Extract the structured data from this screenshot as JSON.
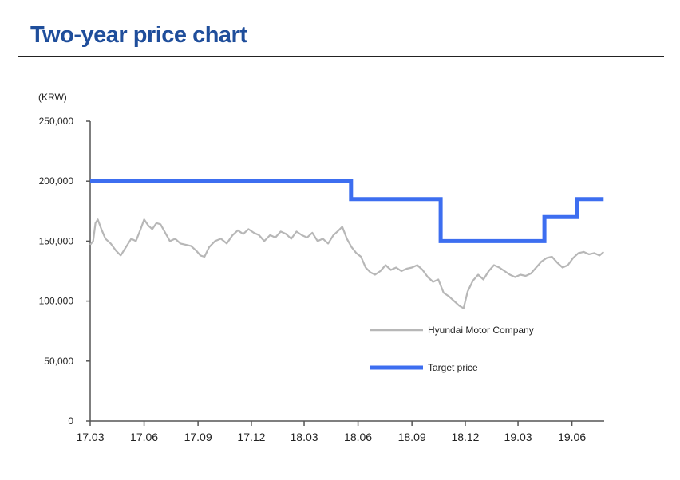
{
  "page": {
    "title": "Two-year price chart"
  },
  "colors": {
    "title": "#1f4e9b",
    "price_line": "#b7b7b7",
    "target_line": "#3d6ef0",
    "axis": "#555555"
  },
  "chart_data": {
    "type": "line",
    "title": "",
    "ylabel": "(KRW)",
    "xlabel": "",
    "ylim": [
      0,
      250000
    ],
    "y_ticks": [
      {
        "value": 0,
        "label": "0"
      },
      {
        "value": 50000,
        "label": "50,000"
      },
      {
        "value": 100000,
        "label": "100,000"
      },
      {
        "value": 150000,
        "label": "150,000"
      },
      {
        "value": 200000,
        "label": "200,000"
      },
      {
        "value": 250000,
        "label": "250,000"
      }
    ],
    "xlim": [
      "2017-03-01",
      "2019-07-26"
    ],
    "x_ticks": [
      {
        "date": "2017-03-01",
        "label": "17.03"
      },
      {
        "date": "2017-06-01",
        "label": "17.06"
      },
      {
        "date": "2017-09-01",
        "label": "17.09"
      },
      {
        "date": "2017-12-01",
        "label": "17.12"
      },
      {
        "date": "2018-03-01",
        "label": "18.03"
      },
      {
        "date": "2018-06-01",
        "label": "18.06"
      },
      {
        "date": "2018-09-01",
        "label": "18.09"
      },
      {
        "date": "2018-12-01",
        "label": "18.12"
      },
      {
        "date": "2019-03-01",
        "label": "19.03"
      },
      {
        "date": "2019-06-01",
        "label": "19.06"
      }
    ],
    "legend_position": "bottom-right",
    "series": [
      {
        "name": "Hyundai Motor Company",
        "color": "#b7b7b7",
        "points": [
          [
            "2017-03-01",
            147000
          ],
          [
            "2017-03-06",
            150000
          ],
          [
            "2017-03-10",
            165000
          ],
          [
            "2017-03-14",
            168000
          ],
          [
            "2017-03-20",
            160000
          ],
          [
            "2017-03-27",
            152000
          ],
          [
            "2017-04-05",
            148000
          ],
          [
            "2017-04-14",
            142000
          ],
          [
            "2017-04-22",
            138000
          ],
          [
            "2017-05-01",
            145000
          ],
          [
            "2017-05-10",
            152000
          ],
          [
            "2017-05-18",
            150000
          ],
          [
            "2017-05-26",
            160000
          ],
          [
            "2017-06-01",
            168000
          ],
          [
            "2017-06-08",
            163000
          ],
          [
            "2017-06-15",
            160000
          ],
          [
            "2017-06-22",
            165000
          ],
          [
            "2017-06-29",
            164000
          ],
          [
            "2017-07-07",
            157000
          ],
          [
            "2017-07-15",
            150000
          ],
          [
            "2017-07-24",
            152000
          ],
          [
            "2017-08-02",
            148000
          ],
          [
            "2017-08-11",
            147000
          ],
          [
            "2017-08-20",
            146000
          ],
          [
            "2017-08-29",
            142000
          ],
          [
            "2017-09-05",
            138000
          ],
          [
            "2017-09-12",
            137000
          ],
          [
            "2017-09-20",
            145000
          ],
          [
            "2017-09-30",
            150000
          ],
          [
            "2017-10-10",
            152000
          ],
          [
            "2017-10-20",
            148000
          ],
          [
            "2017-10-30",
            155000
          ],
          [
            "2017-11-08",
            159000
          ],
          [
            "2017-11-17",
            156000
          ],
          [
            "2017-11-26",
            160000
          ],
          [
            "2017-12-05",
            157000
          ],
          [
            "2017-12-14",
            155000
          ],
          [
            "2017-12-23",
            150000
          ],
          [
            "2018-01-02",
            155000
          ],
          [
            "2018-01-11",
            153000
          ],
          [
            "2018-01-20",
            158000
          ],
          [
            "2018-01-29",
            156000
          ],
          [
            "2018-02-07",
            152000
          ],
          [
            "2018-02-16",
            158000
          ],
          [
            "2018-02-25",
            155000
          ],
          [
            "2018-03-06",
            153000
          ],
          [
            "2018-03-15",
            157000
          ],
          [
            "2018-03-24",
            150000
          ],
          [
            "2018-04-02",
            152000
          ],
          [
            "2018-04-11",
            148000
          ],
          [
            "2018-04-20",
            155000
          ],
          [
            "2018-04-29",
            159000
          ],
          [
            "2018-05-05",
            162000
          ],
          [
            "2018-05-13",
            152000
          ],
          [
            "2018-05-21",
            145000
          ],
          [
            "2018-05-29",
            140000
          ],
          [
            "2018-06-06",
            137000
          ],
          [
            "2018-06-14",
            128000
          ],
          [
            "2018-06-22",
            124000
          ],
          [
            "2018-06-30",
            122000
          ],
          [
            "2018-07-09",
            125000
          ],
          [
            "2018-07-18",
            130000
          ],
          [
            "2018-07-27",
            126000
          ],
          [
            "2018-08-05",
            128000
          ],
          [
            "2018-08-14",
            125000
          ],
          [
            "2018-08-23",
            127000
          ],
          [
            "2018-09-01",
            128000
          ],
          [
            "2018-09-10",
            130000
          ],
          [
            "2018-09-19",
            126000
          ],
          [
            "2018-09-28",
            120000
          ],
          [
            "2018-10-07",
            116000
          ],
          [
            "2018-10-16",
            118000
          ],
          [
            "2018-10-25",
            107000
          ],
          [
            "2018-11-03",
            104000
          ],
          [
            "2018-11-12",
            100000
          ],
          [
            "2018-11-21",
            96000
          ],
          [
            "2018-11-28",
            94000
          ],
          [
            "2018-12-05",
            108000
          ],
          [
            "2018-12-14",
            117000
          ],
          [
            "2018-12-23",
            122000
          ],
          [
            "2019-01-01",
            118000
          ],
          [
            "2019-01-10",
            125000
          ],
          [
            "2019-01-19",
            130000
          ],
          [
            "2019-01-28",
            128000
          ],
          [
            "2019-02-06",
            125000
          ],
          [
            "2019-02-15",
            122000
          ],
          [
            "2019-02-24",
            120000
          ],
          [
            "2019-03-05",
            122000
          ],
          [
            "2019-03-14",
            121000
          ],
          [
            "2019-03-23",
            123000
          ],
          [
            "2019-04-01",
            128000
          ],
          [
            "2019-04-10",
            133000
          ],
          [
            "2019-04-19",
            136000
          ],
          [
            "2019-04-28",
            137000
          ],
          [
            "2019-05-07",
            132000
          ],
          [
            "2019-05-16",
            128000
          ],
          [
            "2019-05-25",
            130000
          ],
          [
            "2019-06-03",
            136000
          ],
          [
            "2019-06-12",
            140000
          ],
          [
            "2019-06-21",
            141000
          ],
          [
            "2019-06-30",
            139000
          ],
          [
            "2019-07-09",
            140000
          ],
          [
            "2019-07-18",
            138000
          ],
          [
            "2019-07-25",
            141000
          ]
        ]
      },
      {
        "name": "Target price",
        "color": "#3d6ef0",
        "step": true,
        "points": [
          [
            "2017-03-01",
            200000
          ],
          [
            "2018-05-20",
            200000
          ],
          [
            "2018-05-20",
            185000
          ],
          [
            "2018-10-20",
            185000
          ],
          [
            "2018-10-20",
            150000
          ],
          [
            "2019-04-15",
            150000
          ],
          [
            "2019-04-15",
            170000
          ],
          [
            "2019-06-10",
            170000
          ],
          [
            "2019-06-10",
            185000
          ],
          [
            "2019-07-25",
            185000
          ]
        ]
      }
    ]
  }
}
